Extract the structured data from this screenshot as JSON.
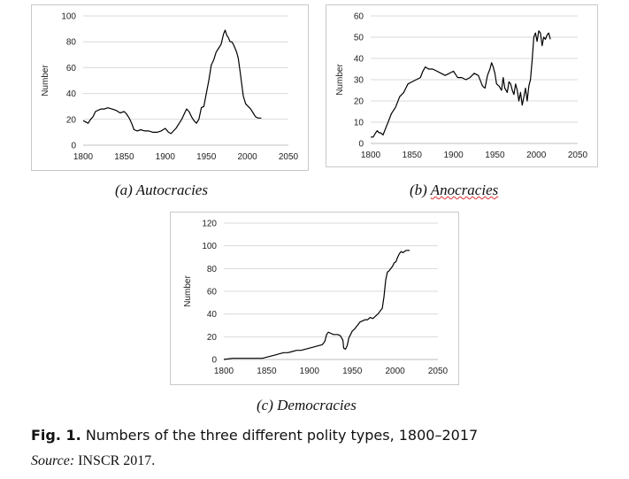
{
  "chart_data": [
    {
      "type": "line",
      "title": "",
      "ylabel": "Number",
      "xlabel": "",
      "caption_label": "(a) Autocracies",
      "caption_prefix": "(a) ",
      "caption_main": "Autocracies",
      "xlim": [
        1800,
        2050
      ],
      "ylim": [
        0,
        100
      ],
      "xticks": [
        "1800",
        "1850",
        "1900",
        "1950",
        "2000",
        "2050"
      ],
      "yticks": [
        "0",
        "20",
        "40",
        "60",
        "80",
        "100"
      ],
      "grid": "horizontal",
      "color": "#000000",
      "series": [
        {
          "x": [
            1800,
            1803,
            1806,
            1809,
            1812,
            1815,
            1818,
            1822,
            1826,
            1830,
            1835,
            1840,
            1845,
            1850,
            1853,
            1856,
            1859,
            1862,
            1866,
            1870,
            1875,
            1880,
            1885,
            1890,
            1895,
            1900,
            1904,
            1907,
            1910,
            1913,
            1917,
            1920,
            1923,
            1926,
            1929,
            1932,
            1935,
            1938,
            1941,
            1944,
            1947,
            1950,
            1953,
            1956,
            1959,
            1962,
            1965,
            1968,
            1971,
            1973,
            1975,
            1977,
            1979,
            1981,
            1983,
            1985,
            1987,
            1989,
            1991,
            1993,
            1995,
            1998,
            2001,
            2004,
            2007,
            2010,
            2013,
            2017
          ],
          "y": [
            19,
            18,
            17,
            20,
            22,
            26,
            27,
            28,
            28,
            29,
            28,
            27,
            25,
            26,
            24,
            21,
            17,
            12,
            11,
            12,
            11,
            11,
            10,
            10,
            11,
            13,
            10,
            9,
            11,
            13,
            17,
            20,
            24,
            28,
            26,
            22,
            19,
            17,
            20,
            29,
            30,
            40,
            50,
            62,
            66,
            72,
            75,
            78,
            86,
            89,
            85,
            83,
            80,
            80,
            78,
            75,
            72,
            67,
            58,
            48,
            38,
            32,
            30,
            28,
            25,
            22,
            21,
            21
          ]
        }
      ]
    },
    {
      "type": "line",
      "title": "",
      "ylabel": "Number",
      "xlabel": "",
      "caption_label": "(b) Anocracies",
      "caption_prefix": "(b) ",
      "caption_main": "Anocracies",
      "xlim": [
        1800,
        2050
      ],
      "ylim": [
        0,
        60
      ],
      "xticks": [
        "1800",
        "1850",
        "1900",
        "1950",
        "2000",
        "2050"
      ],
      "yticks": [
        "0",
        "10",
        "20",
        "30",
        "40",
        "50",
        "60"
      ],
      "grid": "horizontal",
      "color": "#000000",
      "series": [
        {
          "x": [
            1800,
            1803,
            1806,
            1808,
            1810,
            1812,
            1815,
            1818,
            1821,
            1825,
            1830,
            1835,
            1840,
            1845,
            1850,
            1855,
            1860,
            1863,
            1866,
            1870,
            1875,
            1880,
            1885,
            1890,
            1895,
            1900,
            1905,
            1910,
            1915,
            1920,
            1925,
            1930,
            1935,
            1938,
            1941,
            1944,
            1946,
            1948,
            1950,
            1952,
            1955,
            1958,
            1960,
            1962,
            1965,
            1967,
            1969,
            1971,
            1973,
            1975,
            1977,
            1979,
            1981,
            1983,
            1985,
            1987,
            1989,
            1991,
            1993,
            1995,
            1997,
            1999,
            2001,
            2003,
            2005,
            2007,
            2009,
            2011,
            2013,
            2015,
            2017
          ],
          "y": [
            3,
            3,
            5,
            6,
            5,
            5,
            4,
            7,
            10,
            14,
            17,
            22,
            24,
            28,
            29,
            30,
            31,
            34,
            36,
            35,
            35,
            34,
            33,
            32,
            33,
            34,
            31,
            31,
            30,
            31,
            33,
            32,
            27,
            26,
            32,
            35,
            38,
            36,
            33,
            28,
            27,
            25,
            31,
            26,
            24,
            29,
            28,
            25,
            23,
            28,
            25,
            20,
            24,
            18,
            22,
            26,
            20,
            27,
            30,
            39,
            50,
            52,
            48,
            53,
            52,
            46,
            50,
            49,
            51,
            52,
            49
          ]
        }
      ]
    },
    {
      "type": "line",
      "title": "",
      "ylabel": "Number",
      "xlabel": "",
      "caption_label": "(c) Democracies",
      "caption_prefix": "(c) ",
      "caption_main": "Democracies",
      "xlim": [
        1800,
        2050
      ],
      "ylim": [
        0,
        120
      ],
      "xticks": [
        "1800",
        "1850",
        "1900",
        "1950",
        "2000",
        "2050"
      ],
      "yticks": [
        "0",
        "20",
        "40",
        "60",
        "80",
        "100",
        "120"
      ],
      "grid": "horizontal",
      "color": "#000000",
      "series": [
        {
          "x": [
            1800,
            1810,
            1820,
            1830,
            1840,
            1845,
            1850,
            1855,
            1860,
            1865,
            1870,
            1875,
            1880,
            1885,
            1890,
            1895,
            1900,
            1905,
            1910,
            1915,
            1918,
            1920,
            1922,
            1925,
            1928,
            1930,
            1933,
            1936,
            1939,
            1940,
            1942,
            1944,
            1946,
            1948,
            1950,
            1953,
            1956,
            1959,
            1962,
            1965,
            1968,
            1971,
            1974,
            1977,
            1980,
            1983,
            1985,
            1987,
            1989,
            1991,
            1993,
            1995,
            1997,
            1999,
            2001,
            2003,
            2005,
            2007,
            2009,
            2011,
            2013,
            2015,
            2017
          ],
          "y": [
            0,
            1,
            1,
            1,
            1,
            1,
            2,
            3,
            4,
            5,
            6,
            6,
            7,
            8,
            8,
            9,
            10,
            11,
            12,
            13,
            16,
            22,
            24,
            23,
            22,
            22,
            22,
            21,
            17,
            10,
            9,
            12,
            19,
            22,
            25,
            27,
            30,
            33,
            34,
            35,
            35,
            37,
            36,
            38,
            40,
            43,
            45,
            55,
            70,
            77,
            78,
            80,
            82,
            85,
            86,
            90,
            93,
            95,
            94,
            95,
            96,
            96,
            96
          ]
        }
      ]
    }
  ],
  "figure": {
    "label": "Fig. 1.",
    "text": "Numbers of the three different polity types, 1800–2017",
    "source_label": "Source:",
    "source_text": "INSCR 2017."
  }
}
